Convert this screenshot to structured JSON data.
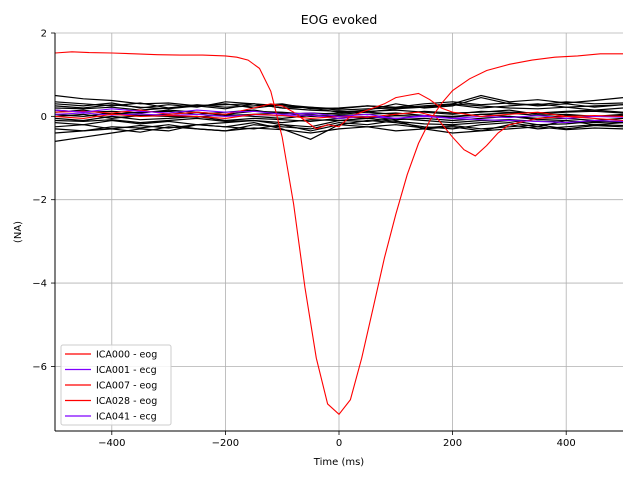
{
  "chart_data": {
    "type": "line",
    "title": "EOG evoked",
    "xlabel": "Time (ms)",
    "ylabel": "(NA)",
    "xlim": [
      -500,
      500
    ],
    "ylim": [
      -7.55,
      2.0
    ],
    "x_ticks": [
      -400,
      -200,
      0,
      200,
      400
    ],
    "x_tick_labels": [
      "−400",
      "−200",
      "0",
      "200",
      "400"
    ],
    "y_ticks": [
      -6,
      -4,
      -2,
      0,
      2
    ],
    "y_tick_labels": [
      "−6",
      "−4",
      "−2",
      "0",
      "2"
    ],
    "grid": true,
    "legend_position": "lower-left",
    "series": [
      {
        "name": "ICA000 - eog",
        "color": "#ff0000",
        "x": [
          -500,
          -470,
          -440,
          -400,
          -360,
          -320,
          -280,
          -240,
          -200,
          -180,
          -160,
          -140,
          -120,
          -100,
          -80,
          -60,
          -40,
          -20,
          0,
          20,
          40,
          60,
          80,
          100,
          120,
          140,
          160,
          180,
          200,
          230,
          260,
          300,
          340,
          380,
          420,
          460,
          500
        ],
        "y": [
          1.52,
          1.55,
          1.53,
          1.52,
          1.5,
          1.48,
          1.47,
          1.47,
          1.45,
          1.42,
          1.35,
          1.15,
          0.6,
          -0.5,
          -2.1,
          -4.1,
          -5.8,
          -6.9,
          -7.15,
          -6.8,
          -5.8,
          -4.6,
          -3.4,
          -2.35,
          -1.4,
          -0.65,
          -0.1,
          0.3,
          0.62,
          0.9,
          1.1,
          1.25,
          1.35,
          1.42,
          1.45,
          1.5,
          1.5
        ]
      },
      {
        "name": "ICA001 - ecg",
        "color": "#7f00ff",
        "x": [
          -500,
          -450,
          -400,
          -350,
          -300,
          -250,
          -200,
          -150,
          -100,
          -50,
          0,
          50,
          100,
          150,
          200,
          250,
          300,
          350,
          400,
          450,
          500
        ],
        "y": [
          0.05,
          0.08,
          0.03,
          0.06,
          0.02,
          0.05,
          0.0,
          0.04,
          0.02,
          0.03,
          -0.05,
          0.0,
          -0.05,
          0.02,
          -0.05,
          0.0,
          -0.03,
          0.02,
          -0.05,
          0.0,
          -0.02
        ]
      },
      {
        "name": "ICA007 - eog",
        "color": "#ff0000",
        "x": [
          -500,
          -450,
          -400,
          -350,
          -300,
          -250,
          -200,
          -150,
          -120,
          -100,
          -80,
          -60,
          -40,
          -20,
          0,
          20,
          40,
          60,
          80,
          100,
          120,
          140,
          160,
          180,
          200,
          250,
          300,
          350,
          400,
          450,
          500
        ],
        "y": [
          0.1,
          0.12,
          0.08,
          0.15,
          0.05,
          0.1,
          0.05,
          0.2,
          0.3,
          0.25,
          0.1,
          -0.1,
          -0.3,
          -0.2,
          -0.25,
          0.0,
          0.1,
          0.2,
          0.3,
          0.45,
          0.5,
          0.55,
          0.4,
          0.2,
          0.1,
          0.0,
          0.05,
          0.1,
          0.0,
          -0.05,
          -0.1
        ]
      },
      {
        "name": "ICA028 - eog",
        "color": "#ff0000",
        "x": [
          -500,
          -450,
          -400,
          -350,
          -300,
          -250,
          -200,
          -150,
          -100,
          -50,
          0,
          50,
          100,
          140,
          170,
          200,
          220,
          240,
          260,
          280,
          300,
          350,
          400,
          450,
          500
        ],
        "y": [
          0.0,
          -0.05,
          0.05,
          0.0,
          0.02,
          0.0,
          -0.05,
          0.05,
          0.02,
          -0.05,
          0.0,
          -0.02,
          0.05,
          0.1,
          0.0,
          -0.5,
          -0.8,
          -0.95,
          -0.7,
          -0.4,
          -0.2,
          -0.05,
          0.0,
          0.02,
          0.0
        ]
      },
      {
        "name": "ICA041 - ecg",
        "color": "#7f00ff",
        "x": [
          -500,
          -450,
          -400,
          -350,
          -300,
          -250,
          -200,
          -150,
          -100,
          -50,
          0,
          50,
          100,
          150,
          200,
          250,
          300,
          350,
          400,
          450,
          500
        ],
        "y": [
          0.15,
          0.1,
          0.18,
          0.12,
          0.08,
          0.15,
          0.1,
          0.12,
          0.05,
          0.08,
          0.0,
          0.05,
          -0.05,
          0.0,
          -0.05,
          -0.08,
          -0.1,
          -0.12,
          -0.15,
          -0.1,
          -0.12
        ]
      }
    ],
    "background_series_color": "#000000",
    "background_series": [
      {
        "x": [
          -500,
          -450,
          -400,
          -350,
          -300,
          -250,
          -200,
          -150,
          -100,
          -50,
          0,
          50,
          100,
          150,
          200,
          250,
          300,
          350,
          400,
          450,
          500
        ],
        "y": [
          0.5,
          0.42,
          0.38,
          0.3,
          0.32,
          0.25,
          0.28,
          0.3,
          0.2,
          0.22,
          0.15,
          0.18,
          0.2,
          0.25,
          0.3,
          0.5,
          0.35,
          0.4,
          0.32,
          0.38,
          0.45
        ]
      },
      {
        "x": [
          -500,
          -450,
          -400,
          -350,
          -300,
          -250,
          -200,
          -150,
          -100,
          -50,
          0,
          50,
          100,
          150,
          200,
          250,
          300,
          350,
          400,
          450,
          500
        ],
        "y": [
          -0.6,
          -0.5,
          -0.4,
          -0.3,
          -0.35,
          -0.2,
          -0.25,
          -0.15,
          -0.3,
          -0.55,
          -0.2,
          -0.1,
          -0.15,
          -0.25,
          -0.3,
          -0.2,
          -0.15,
          -0.25,
          -0.1,
          -0.2,
          -0.15
        ]
      },
      {
        "x": [
          -500,
          -450,
          -400,
          -350,
          -300,
          -250,
          -200,
          -150,
          -100,
          -50,
          0,
          50,
          100,
          150,
          200,
          250,
          300,
          350,
          400,
          450,
          500
        ],
        "y": [
          0.3,
          0.25,
          0.32,
          0.2,
          0.28,
          0.22,
          0.35,
          0.3,
          0.25,
          0.2,
          0.1,
          0.15,
          0.3,
          0.2,
          0.25,
          0.45,
          0.3,
          0.28,
          0.35,
          0.3,
          0.32
        ]
      },
      {
        "x": [
          -500,
          -450,
          -400,
          -350,
          -300,
          -250,
          -200,
          -150,
          -100,
          -50,
          0,
          50,
          100,
          150,
          200,
          250,
          300,
          350,
          400,
          450,
          500
        ],
        "y": [
          -0.3,
          -0.35,
          -0.25,
          -0.28,
          -0.2,
          -0.3,
          -0.35,
          -0.2,
          -0.25,
          -0.3,
          -0.15,
          -0.2,
          -0.1,
          -0.3,
          -0.25,
          -0.35,
          -0.2,
          -0.3,
          -0.25,
          -0.2,
          -0.22
        ]
      },
      {
        "x": [
          -500,
          -450,
          -400,
          -350,
          -300,
          -250,
          -200,
          -150,
          -100,
          -50,
          0,
          50,
          100,
          150,
          200,
          250,
          300,
          350,
          400,
          450,
          500
        ],
        "y": [
          0.2,
          0.18,
          0.22,
          0.15,
          0.2,
          0.25,
          0.18,
          0.3,
          0.2,
          0.15,
          0.12,
          0.1,
          0.18,
          0.22,
          0.3,
          0.25,
          0.2,
          0.18,
          0.22,
          0.15,
          0.2
        ]
      },
      {
        "x": [
          -500,
          -450,
          -400,
          -350,
          -300,
          -250,
          -200,
          -150,
          -100,
          -50,
          0,
          50,
          100,
          150,
          200,
          250,
          300,
          350,
          400,
          450,
          500
        ],
        "y": [
          -0.15,
          -0.2,
          -0.1,
          -0.18,
          -0.12,
          -0.2,
          -0.15,
          -0.1,
          -0.2,
          -0.25,
          -0.1,
          -0.05,
          -0.12,
          -0.18,
          -0.2,
          -0.15,
          -0.1,
          -0.2,
          -0.18,
          -0.12,
          -0.15
        ]
      },
      {
        "x": [
          -500,
          -450,
          -400,
          -350,
          -300,
          -250,
          -200,
          -150,
          -100,
          -50,
          0,
          50,
          100,
          150,
          200,
          250,
          300,
          350,
          400,
          450,
          500
        ],
        "y": [
          0.1,
          0.15,
          0.05,
          0.1,
          0.12,
          0.05,
          0.1,
          0.15,
          0.05,
          0.08,
          0.05,
          0.1,
          0.05,
          0.12,
          0.08,
          0.1,
          0.15,
          0.05,
          0.1,
          0.12,
          0.08
        ]
      },
      {
        "x": [
          -500,
          -450,
          -400,
          -350,
          -300,
          -250,
          -200,
          -150,
          -100,
          -50,
          0,
          50,
          100,
          150,
          200,
          250,
          300,
          350,
          400,
          450,
          500
        ],
        "y": [
          -0.05,
          -0.1,
          0.0,
          -0.08,
          -0.05,
          0.0,
          -0.1,
          -0.05,
          -0.08,
          -0.12,
          -0.05,
          0.0,
          -0.08,
          -0.05,
          -0.1,
          -0.05,
          0.0,
          -0.08,
          -0.05,
          -0.1,
          -0.05
        ]
      },
      {
        "x": [
          -500,
          -450,
          -400,
          -350,
          -300,
          -250,
          -200,
          -150,
          -100,
          -50,
          0,
          50,
          100,
          150,
          200,
          250,
          300,
          350,
          400,
          450,
          500
        ],
        "y": [
          0.25,
          0.2,
          0.28,
          0.22,
          0.18,
          0.25,
          0.3,
          0.2,
          0.28,
          0.22,
          0.18,
          0.25,
          0.2,
          0.22,
          0.28,
          0.2,
          0.25,
          0.3,
          0.22,
          0.25,
          0.28
        ]
      },
      {
        "x": [
          -500,
          -450,
          -400,
          -350,
          -300,
          -250,
          -200,
          -150,
          -100,
          -50,
          0,
          50,
          100,
          150,
          200,
          250,
          300,
          350,
          400,
          450,
          500
        ],
        "y": [
          -0.25,
          -0.2,
          -0.3,
          -0.22,
          -0.28,
          -0.2,
          -0.25,
          -0.3,
          -0.2,
          -0.35,
          -0.2,
          -0.25,
          -0.2,
          -0.28,
          -0.22,
          -0.3,
          -0.25,
          -0.2,
          -0.3,
          -0.22,
          -0.25
        ]
      },
      {
        "x": [
          -500,
          -450,
          -400,
          -350,
          -300,
          -250,
          -200,
          -150,
          -100,
          -50,
          0,
          50,
          100,
          150,
          200,
          250,
          300,
          350,
          400,
          450,
          500
        ],
        "y": [
          0.0,
          0.05,
          -0.05,
          0.02,
          0.0,
          -0.02,
          0.05,
          0.0,
          -0.05,
          0.02,
          0.0,
          -0.05,
          0.02,
          0.0,
          -0.02,
          0.05,
          0.0,
          -0.05,
          0.02,
          0.0,
          0.02
        ]
      },
      {
        "x": [
          -500,
          -450,
          -400,
          -350,
          -300,
          -250,
          -200,
          -150,
          -100,
          -50,
          0,
          50,
          100,
          150,
          200,
          250,
          300,
          350,
          400,
          450,
          500
        ],
        "y": [
          0.15,
          0.1,
          0.12,
          0.08,
          0.15,
          0.1,
          0.05,
          0.12,
          0.1,
          0.05,
          0.08,
          0.12,
          0.15,
          0.1,
          0.05,
          0.12,
          0.1,
          0.08,
          0.12,
          0.15,
          0.1
        ]
      },
      {
        "x": [
          -500,
          -450,
          -400,
          -350,
          -300,
          -250,
          -200,
          -150,
          -100,
          -50,
          0,
          50,
          100,
          150,
          200,
          250,
          300,
          350,
          400,
          450,
          500
        ],
        "y": [
          -0.1,
          -0.12,
          -0.08,
          -0.15,
          -0.1,
          -0.05,
          -0.12,
          -0.1,
          -0.15,
          -0.08,
          -0.1,
          -0.12,
          -0.05,
          -0.1,
          -0.15,
          -0.1,
          -0.08,
          -0.12,
          -0.1,
          -0.15,
          -0.12
        ]
      },
      {
        "x": [
          -500,
          -450,
          -400,
          -350,
          -300,
          -250,
          -200,
          -150,
          -100,
          -50,
          0,
          50,
          100,
          150,
          200,
          250,
          300,
          350,
          400,
          450,
          500
        ],
        "y": [
          0.35,
          0.3,
          0.25,
          0.32,
          0.2,
          0.28,
          0.22,
          0.25,
          0.3,
          0.18,
          0.2,
          0.25,
          0.22,
          0.3,
          0.35,
          0.28,
          0.32,
          0.25,
          0.3,
          0.22,
          0.28
        ]
      },
      {
        "x": [
          -500,
          -450,
          -400,
          -350,
          -300,
          -250,
          -200,
          -150,
          -100,
          -50,
          0,
          50,
          100,
          150,
          200,
          250,
          300,
          350,
          400,
          450,
          500
        ],
        "y": [
          -0.4,
          -0.35,
          -0.3,
          -0.38,
          -0.25,
          -0.3,
          -0.35,
          -0.28,
          -0.32,
          -0.4,
          -0.3,
          -0.25,
          -0.35,
          -0.3,
          -0.4,
          -0.35,
          -0.3,
          -0.25,
          -0.32,
          -0.28,
          -0.3
        ]
      },
      {
        "x": [
          -500,
          -450,
          -400,
          -350,
          -300,
          -250,
          -200,
          -150,
          -100,
          -50,
          0,
          50,
          100,
          150,
          200,
          250,
          300,
          350,
          400,
          450,
          500
        ],
        "y": [
          0.05,
          0.0,
          0.08,
          0.02,
          0.05,
          0.1,
          0.02,
          0.05,
          0.08,
          0.0,
          0.02,
          0.05,
          0.08,
          0.02,
          0.0,
          0.05,
          0.08,
          0.02,
          0.05,
          0.0,
          0.05
        ]
      }
    ],
    "legend": [
      "ICA000 - eog",
      "ICA001 - ecg",
      "ICA007 - eog",
      "ICA028 - eog",
      "ICA041 - ecg"
    ]
  }
}
